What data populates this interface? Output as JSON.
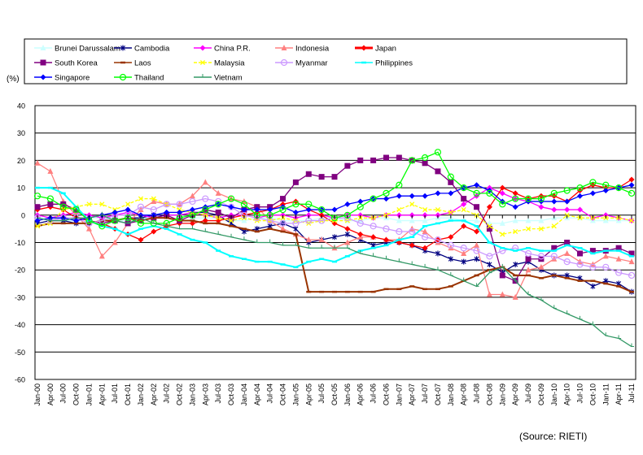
{
  "chart_data": {
    "type": "line",
    "title": "",
    "xlabel": "",
    "ylabel": "(%)",
    "ylim": [
      -60,
      40
    ],
    "yticks": [
      40,
      30,
      20,
      10,
      0,
      -10,
      -20,
      -30,
      -40,
      -50,
      -60
    ],
    "grid": "horizontal",
    "legend_position": "top",
    "source": "(Source: RIETI)",
    "categories": [
      "Jan-00",
      "Apr-00",
      "Jul-00",
      "Oct-00",
      "Jan-01",
      "Apr-01",
      "Jul-01",
      "Oct-01",
      "Jan-02",
      "Apr-02",
      "Jul-02",
      "Oct-02",
      "Jan-03",
      "Apr-03",
      "Jul-03",
      "Oct-03",
      "Jan-04",
      "Apr-04",
      "Jul-04",
      "Oct-04",
      "Jan-05",
      "Apr-05",
      "Jul-05",
      "Oct-05",
      "Jan-06",
      "Apr-06",
      "Jul-06",
      "Oct-06",
      "Jan-07",
      "Apr-07",
      "Jul-07",
      "Oct-07",
      "Jan-08",
      "Apr-08",
      "Jul-08",
      "Oct-08",
      "Jan-09",
      "Apr-09",
      "Jul-09",
      "Oct-09",
      "Jan-10",
      "Apr-10",
      "Jul-10",
      "Oct-10",
      "Jan-11",
      "Apr-11",
      "Jul-11"
    ],
    "series": [
      {
        "name": "Brunei Darussalam",
        "color": "#ccffff",
        "marker": "triangle",
        "values": [
          -1,
          -1,
          -2,
          -2,
          -1,
          -1,
          -2,
          -2,
          -1,
          -1,
          0,
          0,
          -1,
          -1,
          -1,
          -2,
          -2,
          -1,
          -1,
          -2,
          -2,
          -2,
          -1,
          -1,
          -2,
          -2,
          -1,
          -1,
          -2,
          -2,
          -2,
          -1,
          -1,
          -2,
          -2,
          -3,
          -3,
          -2,
          -2,
          -2,
          -1,
          -1,
          -1,
          -2,
          -2,
          -2,
          -2
        ]
      },
      {
        "name": "Cambodia",
        "color": "#000080",
        "marker": "star",
        "values": [
          -3,
          -2,
          -2,
          -3,
          -3,
          -2,
          -2,
          -1,
          -1,
          0,
          0,
          0,
          1,
          1,
          0,
          -3,
          -6,
          -5,
          -4,
          -3,
          -5,
          -10,
          -9,
          -8,
          -7,
          -9,
          -11,
          -10,
          -10,
          -11,
          -13,
          -14,
          -16,
          -17,
          -16,
          -18,
          -21,
          -18,
          -17,
          -20,
          -22,
          -22,
          -23,
          -26,
          -24,
          -25,
          -28
        ]
      },
      {
        "name": "China P.R.",
        "color": "#ff00ff",
        "marker": "diamond",
        "values": [
          0,
          -1,
          0,
          1,
          0,
          -1,
          0,
          1,
          0,
          -1,
          0,
          0,
          1,
          0,
          -1,
          0,
          0,
          -1,
          0,
          0,
          -1,
          0,
          0,
          -1,
          0,
          0,
          -1,
          0,
          0,
          0,
          0,
          0,
          1,
          4,
          7,
          10,
          8,
          6,
          5,
          3,
          2,
          2,
          2,
          -1,
          0,
          -1,
          -2
        ]
      },
      {
        "name": "Indonesia",
        "color": "#ff8080",
        "marker": "triangle",
        "values": [
          19,
          16,
          5,
          0,
          -5,
          -15,
          -10,
          -3,
          2,
          5,
          4,
          4,
          7,
          12,
          8,
          6,
          5,
          3,
          -2,
          -5,
          -7,
          -9,
          -9,
          -12,
          -10,
          -8,
          -8,
          -9,
          -9,
          -5,
          -6,
          -10,
          -12,
          -14,
          -11,
          -29,
          -29,
          -30,
          -20,
          -19,
          -16,
          -14,
          -17,
          -18,
          -15,
          -16,
          -17
        ]
      },
      {
        "name": "Japan",
        "color": "#ff0000",
        "marker": "diamond",
        "values": [
          2,
          3,
          2,
          -1,
          -2,
          -3,
          -5,
          -7,
          -9,
          -6,
          -4,
          -3,
          -3,
          -2,
          -2,
          -1,
          0,
          1,
          2,
          4,
          5,
          2,
          0,
          -3,
          -5,
          -7,
          -8,
          -9,
          -10,
          -11,
          -12,
          -9,
          -8,
          -4,
          -6,
          3,
          10,
          8,
          6,
          7,
          7,
          5,
          9,
          11,
          10,
          10,
          13
        ]
      },
      {
        "name": "South Korea",
        "color": "#800080",
        "marker": "square",
        "values": [
          3,
          4,
          4,
          2,
          -2,
          -3,
          -2,
          -3,
          -2,
          -1,
          0,
          -2,
          0,
          2,
          1,
          -1,
          2,
          3,
          3,
          6,
          12,
          15,
          14,
          14,
          18,
          20,
          20,
          21,
          21,
          20,
          19,
          16,
          12,
          6,
          3,
          -5,
          -22,
          -24,
          -16,
          -16,
          -12,
          -10,
          -14,
          -13,
          -13,
          -12,
          -14
        ]
      },
      {
        "name": "Laos",
        "color": "#993300",
        "marker": "dash",
        "values": [
          -4,
          -3,
          -3,
          -3,
          -3,
          -2,
          -2,
          -1,
          -2,
          -1,
          -1,
          -2,
          -2,
          -3,
          -3,
          -4,
          -5,
          -6,
          -5,
          -6,
          -7,
          -28,
          -28,
          -28,
          -28,
          -28,
          -28,
          -27,
          -27,
          -26,
          -27,
          -27,
          -26,
          -24,
          -22,
          -20,
          -19,
          -22,
          -22,
          -23,
          -22,
          -23,
          -24,
          -24,
          -25,
          -26,
          -28
        ]
      },
      {
        "name": "Malaysia",
        "color": "#ffff00",
        "marker": "x",
        "values": [
          -4,
          -3,
          2,
          3,
          4,
          4,
          2,
          4,
          6,
          6,
          4,
          2,
          1,
          0,
          -1,
          -2,
          -1,
          -2,
          -2,
          -1,
          -2,
          -3,
          -2,
          -2,
          -2,
          -1,
          -1,
          0,
          2,
          4,
          2,
          2,
          1,
          2,
          0,
          -4,
          -7,
          -6,
          -5,
          -5,
          -4,
          0,
          -1,
          -1,
          -1,
          -1,
          -2
        ]
      },
      {
        "name": "Myanmar",
        "color": "#cc99ff",
        "marker": "circle",
        "values": [
          -1,
          -2,
          -1,
          -1,
          -3,
          -2,
          0,
          0,
          3,
          2,
          4,
          4,
          5,
          6,
          5,
          3,
          0,
          -1,
          -2,
          -3,
          -3,
          -2,
          -2,
          -1,
          -1,
          -3,
          -4,
          -5,
          -6,
          -6,
          -8,
          -9,
          -11,
          -12,
          -13,
          -15,
          -13,
          -12,
          -14,
          -15,
          -15,
          -17,
          -18,
          -19,
          -19,
          -21,
          -22
        ]
      },
      {
        "name": "Philippines",
        "color": "#00ffff",
        "marker": "dash",
        "values": [
          10,
          10,
          8,
          3,
          -2,
          -4,
          -5,
          -7,
          -5,
          -4,
          -5,
          -7,
          -9,
          -10,
          -13,
          -15,
          -16,
          -17,
          -17,
          -18,
          -19,
          -17,
          -16,
          -17,
          -15,
          -13,
          -12,
          -11,
          -9,
          -8,
          -4,
          -3,
          -2,
          -2,
          -4,
          -10,
          -12,
          -13,
          -12,
          -13,
          -13,
          -11,
          -12,
          -14,
          -13,
          -13,
          -15
        ]
      },
      {
        "name": "Singapore",
        "color": "#0000ff",
        "marker": "diamond",
        "values": [
          -2,
          -1,
          -1,
          -2,
          -1,
          0,
          1,
          2,
          0,
          0,
          1,
          1,
          2,
          3,
          4,
          3,
          2,
          2,
          2,
          3,
          1,
          2,
          2,
          2,
          4,
          5,
          6,
          6,
          7,
          7,
          7,
          8,
          8,
          10,
          11,
          9,
          5,
          3,
          5,
          5,
          5,
          5,
          7,
          8,
          9,
          10,
          11
        ]
      },
      {
        "name": "Thailand",
        "color": "#00ff00",
        "marker": "circle",
        "values": [
          7,
          6,
          3,
          2,
          -2,
          -4,
          -2,
          -1,
          -3,
          -3,
          -3,
          -1,
          0,
          2,
          4,
          6,
          4,
          0,
          0,
          2,
          4,
          4,
          2,
          -1,
          0,
          3,
          6,
          8,
          11,
          20,
          21,
          23,
          14,
          10,
          8,
          8,
          4,
          6,
          6,
          6,
          8,
          9,
          10,
          12,
          11,
          10,
          8
        ]
      },
      {
        "name": "Vietnam",
        "color": "#339966",
        "marker": "tick",
        "values": [
          -1,
          -2,
          -2,
          -1,
          -1,
          0,
          -2,
          -3,
          -1,
          -3,
          -4,
          -5,
          -5,
          -6,
          -7,
          -8,
          -9,
          -10,
          -10,
          -11,
          -11,
          -12,
          -12,
          -12,
          -12,
          -14,
          -15,
          -16,
          -17,
          -18,
          -19,
          -20,
          -22,
          -24,
          -26,
          -21,
          -19,
          -24,
          -29,
          -31,
          -34,
          -36,
          -38,
          -40,
          -44,
          -45,
          -48
        ]
      }
    ]
  }
}
